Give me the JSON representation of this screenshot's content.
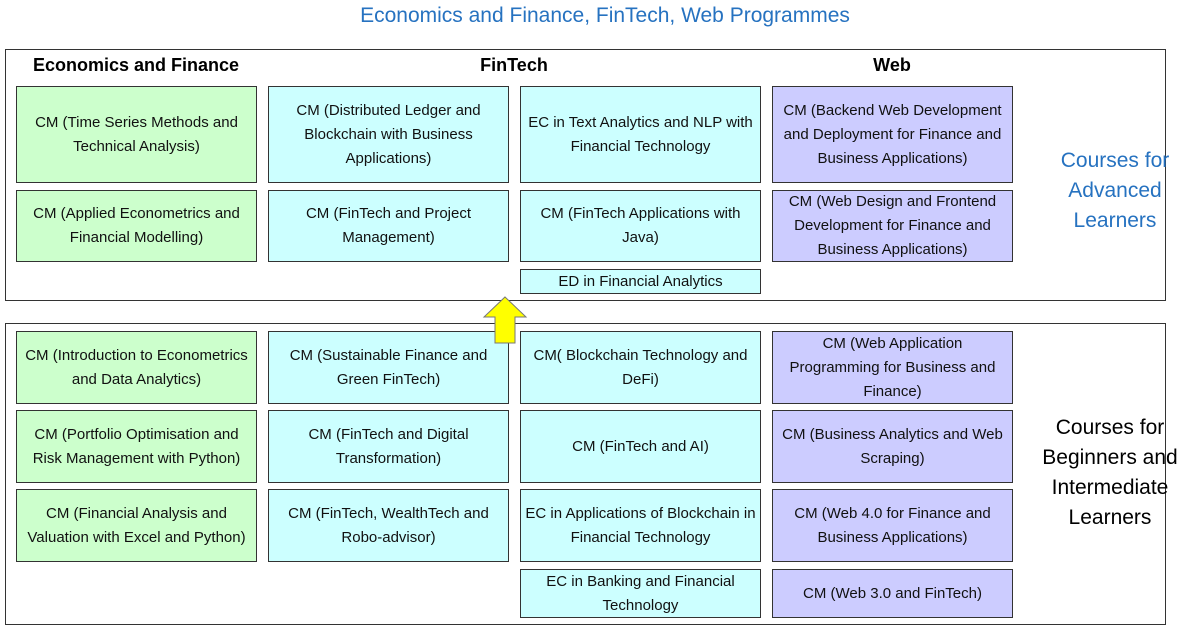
{
  "title": "Economics and Finance, FinTech, Web Programmes",
  "colors": {
    "econ": "#ccffcc",
    "fintech": "#ccffff",
    "web": "#ccccff",
    "arrow": "#ffff00",
    "title": "#2672c0"
  },
  "headers": {
    "econ": "Economics and Finance",
    "fintech": "FinTech",
    "web": "Web"
  },
  "advanced": {
    "label": "Courses for Advanced Learners",
    "econ": [
      "CM (Time Series Methods and Technical Analysis)",
      "CM (Applied Econometrics and Financial Modelling)"
    ],
    "fintech_a": [
      "CM (Distributed Ledger and Blockchain with Business Applications)",
      "CM (FinTech and Project Management)"
    ],
    "fintech_b": [
      "EC in Text Analytics and NLP with Financial Technology",
      "CM (FinTech Applications with Java)",
      "ED in Financial Analytics"
    ],
    "web": [
      "CM (Backend Web Development and Deployment for Finance and Business Applications)",
      "CM (Web Design and Frontend Development for Finance and Business Applications)"
    ]
  },
  "beginner": {
    "label": "Courses for Beginners and Intermediate Learners",
    "econ": [
      "CM (Introduction to Econometrics and Data Analytics)",
      "CM (Portfolio Optimisation and Risk Management with Python)",
      "CM (Financial Analysis and Valuation with Excel and Python)"
    ],
    "fintech_a": [
      "CM (Sustainable Finance and Green FinTech)",
      "CM (FinTech and Digital Transformation)",
      "CM (FinTech, WealthTech and Robo-advisor)"
    ],
    "fintech_b": [
      "CM( Blockchain Technology and DeFi)",
      "CM (FinTech and AI)",
      "EC in Applications of Blockchain in Financial Technology",
      "EC in Banking and Financial Technology"
    ],
    "web": [
      "CM (Web Application Programming for Business and Finance)",
      "CM (Business Analytics and Web Scraping)",
      "CM (Web 4.0 for Finance and Business Applications)",
      "CM (Web 3.0 and FinTech)"
    ]
  }
}
